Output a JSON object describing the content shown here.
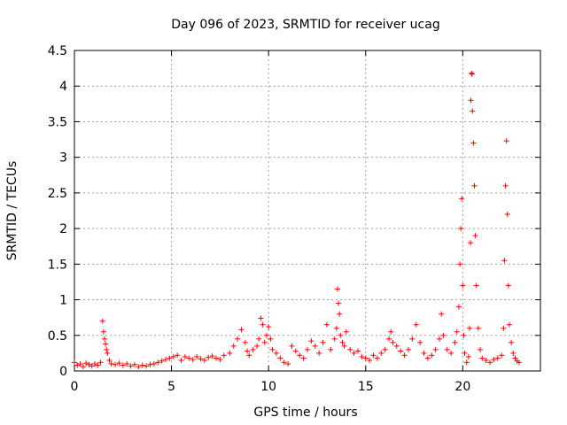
{
  "chart_data": {
    "type": "scatter",
    "title": "Day 096 of 2023, SRMTID for receiver ucag",
    "xlabel": "GPS time / hours",
    "ylabel": "SRMTID / TECUs",
    "xlim": [
      0,
      24
    ],
    "ylim": [
      0,
      4.5
    ],
    "xticks": [
      0,
      5,
      10,
      15,
      20
    ],
    "xtick_labels": [
      "0",
      "5",
      "10",
      "15",
      "20"
    ],
    "yticks": [
      0,
      0.5,
      1,
      1.5,
      2,
      2.5,
      3,
      3.5,
      4,
      4.5
    ],
    "ytick_labels": [
      "0",
      "0.5",
      "1",
      "1.5",
      "2",
      "2.5",
      "3",
      "3.5",
      "4",
      "4.5"
    ],
    "grid": true,
    "marker": "plus",
    "series": [
      {
        "name": "SRMTID",
        "color": "#ff0000",
        "x": [
          0.0,
          0.15,
          0.3,
          0.45,
          0.6,
          0.75,
          0.9,
          1.05,
          1.2,
          1.35,
          1.45,
          1.5,
          1.55,
          1.6,
          1.65,
          1.7,
          1.8,
          1.9,
          2.1,
          2.3,
          2.5,
          2.7,
          2.9,
          3.1,
          3.3,
          3.5,
          3.7,
          3.9,
          4.1,
          4.3,
          4.5,
          4.7,
          4.9,
          5.1,
          5.3,
          5.5,
          5.7,
          5.9,
          6.1,
          6.3,
          6.5,
          6.7,
          6.9,
          7.1,
          7.3,
          7.5,
          7.7,
          8.0,
          8.2,
          8.4,
          8.6,
          8.8,
          8.9,
          9.0,
          9.2,
          9.4,
          9.5,
          9.6,
          9.7,
          9.8,
          9.9,
          10.0,
          10.1,
          10.2,
          10.4,
          10.6,
          10.8,
          11.0,
          11.2,
          11.4,
          11.6,
          11.8,
          12.0,
          12.2,
          12.4,
          12.6,
          12.8,
          13.0,
          13.2,
          13.4,
          13.5,
          13.55,
          13.6,
          13.65,
          13.7,
          13.8,
          13.9,
          14.0,
          14.2,
          14.4,
          14.6,
          14.8,
          15.0,
          15.2,
          15.4,
          15.6,
          15.8,
          16.0,
          16.2,
          16.3,
          16.4,
          16.6,
          16.8,
          17.0,
          17.2,
          17.4,
          17.6,
          17.8,
          18.0,
          18.2,
          18.4,
          18.6,
          18.8,
          18.9,
          19.0,
          19.2,
          19.4,
          19.6,
          19.7,
          19.8,
          19.85,
          19.9,
          19.95,
          20.0,
          20.05,
          20.1,
          20.2,
          20.3,
          20.35,
          20.4,
          20.42,
          20.45,
          20.48,
          20.5,
          20.55,
          20.6,
          20.65,
          20.7,
          20.8,
          20.9,
          21.0,
          21.2,
          21.4,
          21.6,
          21.8,
          22.0,
          22.1,
          22.15,
          22.2,
          22.25,
          22.3,
          22.35,
          22.4,
          22.5,
          22.6,
          22.7,
          22.8,
          22.9
        ],
        "y": [
          0.12,
          0.08,
          0.1,
          0.06,
          0.11,
          0.09,
          0.07,
          0.1,
          0.08,
          0.12,
          0.7,
          0.55,
          0.45,
          0.38,
          0.3,
          0.25,
          0.15,
          0.1,
          0.09,
          0.11,
          0.08,
          0.1,
          0.07,
          0.09,
          0.06,
          0.08,
          0.07,
          0.09,
          0.1,
          0.12,
          0.14,
          0.16,
          0.18,
          0.2,
          0.22,
          0.15,
          0.2,
          0.18,
          0.16,
          0.2,
          0.17,
          0.15,
          0.19,
          0.21,
          0.18,
          0.16,
          0.22,
          0.25,
          0.35,
          0.45,
          0.58,
          0.4,
          0.28,
          0.22,
          0.3,
          0.35,
          0.45,
          0.74,
          0.65,
          0.4,
          0.5,
          0.62,
          0.45,
          0.3,
          0.25,
          0.18,
          0.12,
          0.1,
          0.35,
          0.28,
          0.22,
          0.18,
          0.3,
          0.42,
          0.35,
          0.25,
          0.4,
          0.65,
          0.3,
          0.45,
          0.6,
          1.15,
          0.95,
          0.8,
          0.5,
          0.4,
          0.35,
          0.55,
          0.3,
          0.25,
          0.28,
          0.2,
          0.18,
          0.15,
          0.22,
          0.18,
          0.25,
          0.3,
          0.45,
          0.55,
          0.4,
          0.35,
          0.28,
          0.22,
          0.3,
          0.45,
          0.65,
          0.4,
          0.25,
          0.18,
          0.22,
          0.3,
          0.45,
          0.8,
          0.5,
          0.3,
          0.25,
          0.4,
          0.55,
          0.9,
          1.5,
          2.0,
          2.42,
          1.2,
          0.5,
          0.25,
          0.12,
          0.2,
          0.6,
          1.8,
          3.8,
          4.18,
          4.17,
          3.65,
          3.2,
          2.6,
          1.9,
          1.2,
          0.6,
          0.3,
          0.18,
          0.15,
          0.12,
          0.16,
          0.18,
          0.22,
          0.6,
          1.55,
          2.6,
          3.23,
          2.2,
          1.2,
          0.65,
          0.4,
          0.25,
          0.18,
          0.14,
          0.12
        ]
      }
    ]
  }
}
